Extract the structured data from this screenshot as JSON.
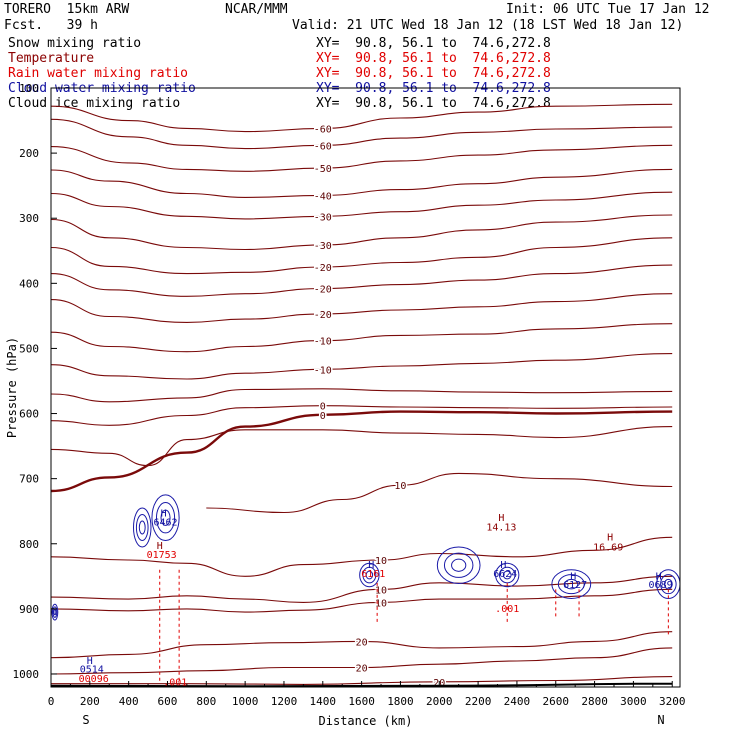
{
  "header": {
    "model": "TORERO  15km ARW",
    "forecast": "Fcst.   39 h",
    "center": "NCAR/MMM",
    "init": "Init: 06 UTC Tue 17 Jan 12",
    "valid": "Valid: 21 UTC Wed 18 Jan 12 (18 LST Wed 18 Jan 12)"
  },
  "fields": [
    {
      "name": "Snow mixing ratio",
      "xy": "XY=  90.8, 56.1 to  74.6,272.8",
      "color": "#000000"
    },
    {
      "name": "Temperature",
      "xy": "XY=  90.8, 56.1 to  74.6,272.8",
      "color": "#8b0000"
    },
    {
      "name": "Rain water mixing ratio",
      "xy": "XY=  90.8, 56.1 to  74.6,272.8",
      "color": "#e00000"
    },
    {
      "name": "Cloud water mixing ratio",
      "xy": "XY=  90.8, 56.1 to  74.6,272.8",
      "color": "#1010a0"
    },
    {
      "name": "Cloud ice mixing ratio",
      "xy": "XY=  90.8, 56.1 to  74.6,272.8",
      "color": "#000000"
    }
  ],
  "chart_data": {
    "type": "line",
    "title": "",
    "xlabel": "Distance (km)",
    "ylabel": "Pressure (hPa)",
    "xlim": [
      0,
      3240
    ],
    "ylim": [
      100,
      1020
    ],
    "y_inverted": true,
    "x_ticks": [
      0,
      200,
      400,
      600,
      800,
      1000,
      1200,
      1400,
      1600,
      1800,
      2000,
      2200,
      2400,
      2600,
      2800,
      3000,
      3200
    ],
    "y_ticks": [
      100,
      200,
      300,
      400,
      500,
      600,
      700,
      800,
      900,
      1000
    ],
    "x_end_labels": {
      "left": "S",
      "right": "N"
    },
    "isotherms": [
      {
        "label": "-60",
        "points": [
          [
            0,
            128
          ],
          [
            400,
            150
          ],
          [
            700,
            162
          ],
          [
            1000,
            167
          ],
          [
            1400,
            162
          ],
          [
            1800,
            146
          ],
          [
            2200,
            137
          ],
          [
            2600,
            128
          ],
          [
            3200,
            125
          ]
        ]
      },
      {
        "label": "-60",
        "points": [
          [
            0,
            148
          ],
          [
            400,
            175
          ],
          [
            700,
            188
          ],
          [
            1000,
            193
          ],
          [
            1400,
            188
          ],
          [
            1800,
            177
          ],
          [
            2200,
            168
          ],
          [
            2600,
            163
          ],
          [
            3200,
            160
          ]
        ]
      },
      {
        "label": "-50",
        "points": [
          [
            0,
            190
          ],
          [
            400,
            215
          ],
          [
            700,
            225
          ],
          [
            1000,
            228
          ],
          [
            1400,
            223
          ],
          [
            1800,
            212
          ],
          [
            2200,
            203
          ],
          [
            2600,
            195
          ],
          [
            3200,
            188
          ]
        ]
      },
      {
        "label": "-40",
        "points": [
          [
            0,
            226
          ],
          [
            300,
            243
          ],
          [
            700,
            262
          ],
          [
            1000,
            268
          ],
          [
            1400,
            265
          ],
          [
            1800,
            256
          ],
          [
            2200,
            247
          ],
          [
            2600,
            237
          ],
          [
            3200,
            225
          ]
        ]
      },
      {
        "label": "-30",
        "points": [
          [
            0,
            262
          ],
          [
            300,
            282
          ],
          [
            700,
            297
          ],
          [
            1000,
            301
          ],
          [
            1400,
            297
          ],
          [
            1800,
            290
          ],
          [
            2200,
            280
          ],
          [
            2600,
            272
          ],
          [
            3200,
            260
          ]
        ]
      },
      {
        "label": "-30",
        "points": [
          [
            0,
            302
          ],
          [
            300,
            330
          ],
          [
            700,
            345
          ],
          [
            1000,
            348
          ],
          [
            1400,
            341
          ],
          [
            1800,
            330
          ],
          [
            2200,
            318
          ],
          [
            2600,
            306
          ],
          [
            3200,
            295
          ]
        ]
      },
      {
        "label": "-20",
        "points": [
          [
            0,
            345
          ],
          [
            300,
            374
          ],
          [
            700,
            385
          ],
          [
            1000,
            383
          ],
          [
            1400,
            375
          ],
          [
            1800,
            368
          ],
          [
            2200,
            360
          ],
          [
            2600,
            345
          ],
          [
            3200,
            330
          ]
        ]
      },
      {
        "label": "-20",
        "points": [
          [
            0,
            385
          ],
          [
            300,
            410
          ],
          [
            700,
            420
          ],
          [
            1000,
            416
          ],
          [
            1400,
            408
          ],
          [
            1800,
            402
          ],
          [
            2200,
            395
          ],
          [
            2600,
            385
          ],
          [
            3200,
            372
          ]
        ]
      },
      {
        "label": "-20",
        "points": [
          [
            0,
            425
          ],
          [
            300,
            451
          ],
          [
            700,
            460
          ],
          [
            1000,
            455
          ],
          [
            1400,
            447
          ],
          [
            1800,
            441
          ],
          [
            2200,
            436
          ],
          [
            2600,
            428
          ],
          [
            3200,
            416
          ]
        ]
      },
      {
        "label": "-10",
        "points": [
          [
            0,
            475
          ],
          [
            300,
            497
          ],
          [
            700,
            505
          ],
          [
            1000,
            497
          ],
          [
            1400,
            488
          ],
          [
            1800,
            480
          ],
          [
            2200,
            478
          ],
          [
            2600,
            470
          ],
          [
            3200,
            462
          ]
        ]
      },
      {
        "label": "-10",
        "points": [
          [
            0,
            525
          ],
          [
            300,
            542
          ],
          [
            700,
            547
          ],
          [
            1000,
            538
          ],
          [
            1400,
            532
          ],
          [
            1800,
            527
          ],
          [
            2200,
            523
          ],
          [
            2600,
            518
          ],
          [
            3200,
            508
          ]
        ]
      },
      {
        "label": "",
        "points": [
          [
            0,
            570
          ],
          [
            300,
            582
          ],
          [
            700,
            576
          ],
          [
            1000,
            563
          ],
          [
            1400,
            562
          ],
          [
            1800,
            565
          ],
          [
            2200,
            567
          ],
          [
            2600,
            568
          ],
          [
            3200,
            566
          ]
        ]
      },
      {
        "label": "0",
        "points": [
          [
            0,
            611
          ],
          [
            300,
            618
          ],
          [
            700,
            603
          ],
          [
            1000,
            591
          ],
          [
            1400,
            588
          ],
          [
            1800,
            590
          ],
          [
            2200,
            591
          ],
          [
            2600,
            592
          ],
          [
            3200,
            590
          ]
        ]
      },
      {
        "label": "0",
        "points": [
          [
            0,
            719
          ],
          [
            300,
            698
          ],
          [
            700,
            660
          ],
          [
            1000,
            620
          ],
          [
            1400,
            602
          ],
          [
            1800,
            597
          ],
          [
            2200,
            598
          ],
          [
            2600,
            600
          ],
          [
            3200,
            597
          ]
        ]
      },
      {
        "label": "",
        "points": [
          [
            0,
            655
          ],
          [
            300,
            661
          ],
          [
            500,
            680
          ],
          [
            700,
            640
          ],
          [
            1000,
            625
          ],
          [
            1400,
            625
          ],
          [
            1800,
            630
          ],
          [
            2200,
            632
          ],
          [
            2600,
            637
          ],
          [
            3200,
            620
          ]
        ]
      },
      {
        "label": "10",
        "points": [
          [
            800,
            745
          ],
          [
            1200,
            752
          ],
          [
            1500,
            732
          ],
          [
            1800,
            710
          ],
          [
            2100,
            692
          ],
          [
            2600,
            700
          ],
          [
            3200,
            712
          ]
        ]
      },
      {
        "label": "10",
        "points": [
          [
            0,
            820
          ],
          [
            400,
            825
          ],
          [
            700,
            830
          ],
          [
            1000,
            850
          ],
          [
            1300,
            832
          ],
          [
            1700,
            825
          ],
          [
            2000,
            815
          ],
          [
            2400,
            820
          ],
          [
            2800,
            810
          ],
          [
            3200,
            790
          ]
        ]
      },
      {
        "label": "10",
        "points": [
          [
            0,
            882
          ],
          [
            400,
            885
          ],
          [
            700,
            880
          ],
          [
            1000,
            885
          ],
          [
            1300,
            890
          ],
          [
            1700,
            870
          ],
          [
            2000,
            860
          ],
          [
            2400,
            865
          ],
          [
            2800,
            860
          ],
          [
            3200,
            850
          ]
        ]
      },
      {
        "label": "10",
        "points": [
          [
            0,
            900
          ],
          [
            400,
            903
          ],
          [
            700,
            900
          ],
          [
            1000,
            905
          ],
          [
            1300,
            902
          ],
          [
            1700,
            890
          ],
          [
            2000,
            885
          ],
          [
            2400,
            885
          ],
          [
            2800,
            880
          ],
          [
            3200,
            870
          ]
        ]
      },
      {
        "label": "20",
        "points": [
          [
            0,
            975
          ],
          [
            400,
            970
          ],
          [
            800,
            955
          ],
          [
            1200,
            952
          ],
          [
            1600,
            950
          ],
          [
            2000,
            960
          ],
          [
            2400,
            958
          ],
          [
            2800,
            950
          ],
          [
            3200,
            935
          ]
        ]
      },
      {
        "label": "20",
        "points": [
          [
            0,
            1000
          ],
          [
            400,
            998
          ],
          [
            800,
            995
          ],
          [
            1200,
            990
          ],
          [
            1600,
            990
          ],
          [
            2000,
            985
          ],
          [
            2400,
            980
          ],
          [
            2800,
            975
          ],
          [
            3200,
            960
          ]
        ]
      },
      {
        "label": "20",
        "points": [
          [
            0,
            1015
          ],
          [
            700,
            1015
          ],
          [
            1300,
            1016
          ],
          [
            2000,
            1012
          ],
          [
            2600,
            1010
          ],
          [
            3200,
            1004
          ]
        ]
      }
    ],
    "surface": [
      [
        0,
        1018
      ],
      [
        1000,
        1019
      ],
      [
        2000,
        1018
      ],
      [
        3200,
        1015
      ]
    ],
    "annotations": [
      {
        "text": "H",
        "x": 580,
        "y": 758,
        "color": "#1010a0"
      },
      {
        "text": "6462",
        "x": 590,
        "y": 772,
        "color": "#1010a0"
      },
      {
        "text": "H",
        "x": 560,
        "y": 808,
        "color": "#8b0000"
      },
      {
        "text": "01753",
        "x": 570,
        "y": 822,
        "color": "#e00000"
      },
      {
        "text": "H",
        "x": 1650,
        "y": 837,
        "color": "#1010a0"
      },
      {
        "text": "6161",
        "x": 1660,
        "y": 851,
        "color": "#e00000"
      },
      {
        "text": "H",
        "x": 2320,
        "y": 765,
        "color": "#8b0000"
      },
      {
        "text": "14.13",
        "x": 2320,
        "y": 780,
        "color": "#8b0000"
      },
      {
        "text": "H",
        "x": 2330,
        "y": 837,
        "color": "#1010a0"
      },
      {
        "text": "6624",
        "x": 2340,
        "y": 851,
        "color": "#1010a0"
      },
      {
        "text": ".001",
        "x": 2350,
        "y": 905,
        "color": "#e00000"
      },
      {
        "text": "H",
        "x": 2880,
        "y": 795,
        "color": "#8b0000"
      },
      {
        "text": "16.69",
        "x": 2870,
        "y": 810,
        "color": "#8b0000"
      },
      {
        "text": "H",
        "x": 2690,
        "y": 855,
        "color": "#1010a0"
      },
      {
        "text": "6127",
        "x": 2700,
        "y": 868,
        "color": "#1010a0"
      },
      {
        "text": "H",
        "x": 3130,
        "y": 855,
        "color": "#1010a0"
      },
      {
        "text": "0689",
        "x": 3140,
        "y": 868,
        "color": "#1010a0"
      },
      {
        "text": "H",
        "x": 200,
        "y": 985,
        "color": "#1010a0"
      },
      {
        "text": "0514",
        "x": 210,
        "y": 998,
        "color": "#1010a0"
      },
      {
        "text": "00096",
        "x": 220,
        "y": 1012,
        "color": "#e00000"
      },
      {
        "text": ".001",
        "x": 640,
        "y": 1018,
        "color": "#e00000"
      }
    ],
    "cloud_water_cells": [
      {
        "center": [
          590,
          760
        ],
        "rx": 70,
        "ry": 35
      },
      {
        "center": [
          470,
          775
        ],
        "rx": 45,
        "ry": 30
      },
      {
        "center": [
          1640,
          848
        ],
        "rx": 50,
        "ry": 18
      },
      {
        "center": [
          2100,
          833
        ],
        "rx": 110,
        "ry": 28
      },
      {
        "center": [
          2350,
          848
        ],
        "rx": 60,
        "ry": 18
      },
      {
        "center": [
          2680,
          862
        ],
        "rx": 100,
        "ry": 22
      },
      {
        "center": [
          3180,
          862
        ],
        "rx": 60,
        "ry": 22
      },
      {
        "center": [
          20,
          905
        ],
        "rx": 15,
        "ry": 12
      }
    ],
    "rain_columns": [
      {
        "x": 560,
        "top": 840,
        "bottom": 1015
      },
      {
        "x": 660,
        "top": 840,
        "bottom": 1015
      },
      {
        "x": 1680,
        "top": 860,
        "bottom": 920
      },
      {
        "x": 2350,
        "top": 860,
        "bottom": 920
      },
      {
        "x": 2600,
        "top": 870,
        "bottom": 915
      },
      {
        "x": 2720,
        "top": 870,
        "bottom": 915
      },
      {
        "x": 3180,
        "top": 870,
        "bottom": 940
      }
    ]
  }
}
